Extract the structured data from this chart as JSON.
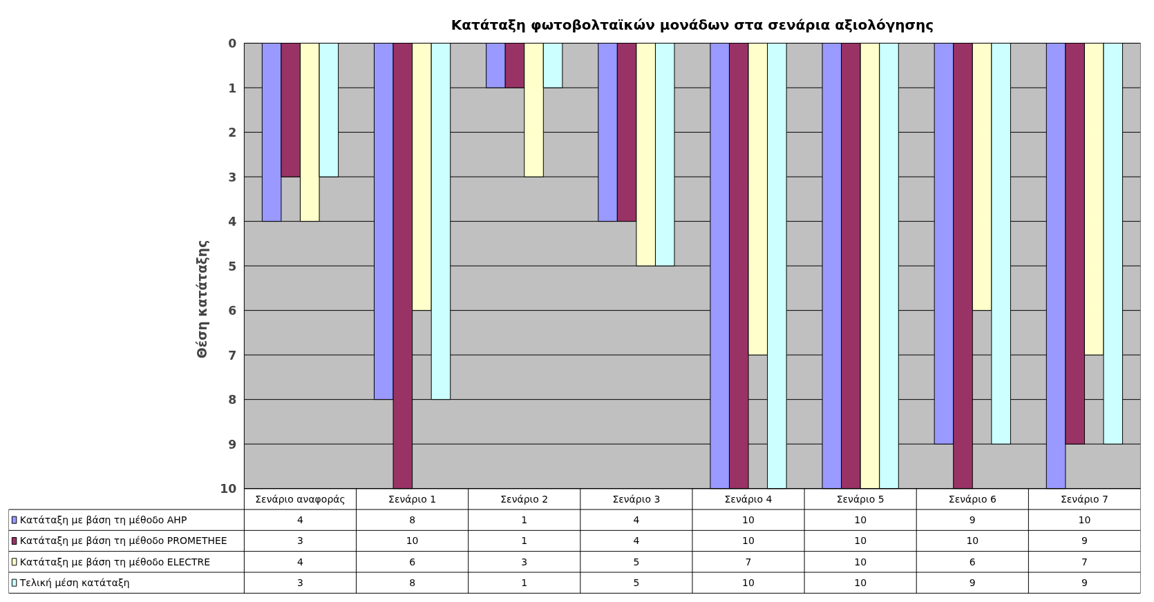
{
  "chart_data": {
    "type": "bar",
    "title": "Κατάταξη φωτοβολταϊκών μονάδων στα σενάρια αξιολόγησης",
    "ylabel": "Θέση κατάταξης",
    "categories": [
      "Σενάριο αναφοράς",
      "Σενάριο 1",
      "Σενάριο 2",
      "Σενάριο 3",
      "Σενάριο 4",
      "Σενάριο 5",
      "Σενάριο 6",
      "Σενάριο 7"
    ],
    "series": [
      {
        "name": "Κατάταξη με βάση τη μέθοδο AHP",
        "color": "#9999ff",
        "values": [
          4,
          8,
          1,
          4,
          10,
          10,
          9,
          10
        ]
      },
      {
        "name": "Κατάταξη με βάση τη μέθοδο PROMETHEE",
        "color": "#993366",
        "values": [
          3,
          10,
          1,
          4,
          10,
          10,
          10,
          9
        ]
      },
      {
        "name": "Κατάταξη με βάση τη μέθοδο ELECTRE",
        "color": "#ffffcc",
        "values": [
          4,
          6,
          3,
          5,
          7,
          10,
          6,
          7
        ]
      },
      {
        "name": "Τελική μέση κατάταξη",
        "color": "#ccffff",
        "values": [
          3,
          8,
          1,
          5,
          10,
          10,
          9,
          9
        ]
      }
    ],
    "ylim": [
      10,
      0
    ],
    "yticks": [
      0,
      1,
      2,
      3,
      4,
      5,
      6,
      7,
      8,
      9,
      10
    ],
    "grid": "y",
    "data_labels": true,
    "legend": "bottom left"
  }
}
